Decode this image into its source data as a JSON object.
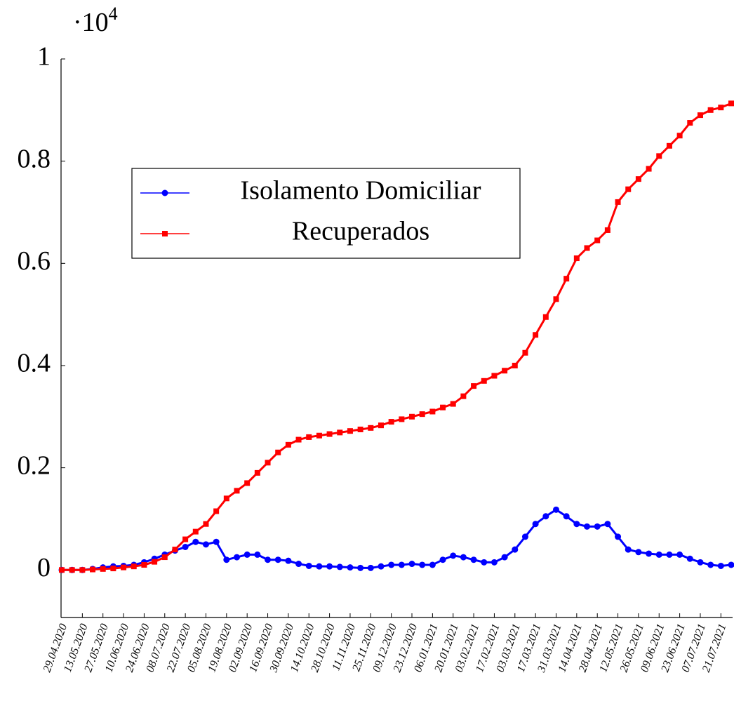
{
  "chart_data": {
    "type": "line",
    "y_multiplier": {
      "base": "·10",
      "exponent": "4"
    },
    "categories": [
      "29.04.2020",
      null,
      "13.05.2020",
      null,
      "27.05.2020",
      null,
      "10.06.2020",
      null,
      "24.06.2020",
      null,
      "08.07.2020",
      null,
      "22.07.2020",
      null,
      "05.08.2020",
      null,
      "19.08.2020",
      null,
      "02.09.2020",
      null,
      "16.09.2020",
      null,
      "30.09.2020",
      null,
      "14.10.2020",
      null,
      "28.10.2020",
      null,
      "11.11.2020",
      null,
      "25.11.2020",
      null,
      "09.12.2020",
      null,
      "23.12.2020",
      null,
      "06.01.2021",
      null,
      "20.01.2021",
      null,
      "03.02.2021",
      null,
      "17.02.2021",
      null,
      "03.03.2021",
      null,
      "17.03.2021",
      null,
      "31.03.2021",
      null,
      "14.04.2021",
      null,
      "28.04.2021",
      null,
      "12.05.2021",
      null,
      "26.05.2021",
      null,
      "09.06.2021",
      null,
      "23.06.2021",
      null,
      "07.07.2021",
      null,
      "21.07.2021",
      null
    ],
    "series": [
      {
        "name": "Isolamento Domiciliar",
        "color": "#0000ff",
        "marker": "circle",
        "values": [
          0,
          0,
          0,
          0.002,
          0.005,
          0.007,
          0.008,
          0.01,
          0.015,
          0.022,
          0.03,
          0.038,
          0.045,
          0.055,
          0.05,
          0.055,
          0.02,
          0.025,
          0.03,
          0.03,
          0.02,
          0.02,
          0.018,
          0.012,
          0.008,
          0.007,
          0.007,
          0.006,
          0.005,
          0.004,
          0.004,
          0.007,
          0.01,
          0.01,
          0.012,
          0.01,
          0.01,
          0.02,
          0.028,
          0.025,
          0.02,
          0.015,
          0.015,
          0.025,
          0.04,
          0.065,
          0.09,
          0.105,
          0.118,
          0.105,
          0.09,
          0.085,
          0.085,
          0.09,
          0.065,
          0.04,
          0.035,
          0.032,
          0.03,
          0.03,
          0.03,
          0.022,
          0.015,
          0.01,
          0.008,
          0.01
        ]
      },
      {
        "name": "Recuperados",
        "color": "#ff0000",
        "marker": "square",
        "values": [
          0,
          0,
          0,
          0.001,
          0.002,
          0.003,
          0.005,
          0.007,
          0.01,
          0.016,
          0.025,
          0.04,
          0.06,
          0.075,
          0.09,
          0.115,
          0.14,
          0.155,
          0.17,
          0.19,
          0.21,
          0.23,
          0.245,
          0.255,
          0.26,
          0.263,
          0.266,
          0.269,
          0.272,
          0.275,
          0.278,
          0.283,
          0.29,
          0.295,
          0.3,
          0.305,
          0.31,
          0.318,
          0.325,
          0.34,
          0.36,
          0.37,
          0.38,
          0.39,
          0.4,
          0.425,
          0.46,
          0.495,
          0.53,
          0.57,
          0.61,
          0.63,
          0.645,
          0.665,
          0.72,
          0.745,
          0.765,
          0.785,
          0.81,
          0.83,
          0.85,
          0.875,
          0.89,
          0.9,
          0.905,
          0.913
        ]
      }
    ],
    "ylim": [
      -0.093,
      1
    ],
    "yticks": [
      0,
      0.2,
      0.4,
      0.6,
      0.8,
      1
    ]
  }
}
